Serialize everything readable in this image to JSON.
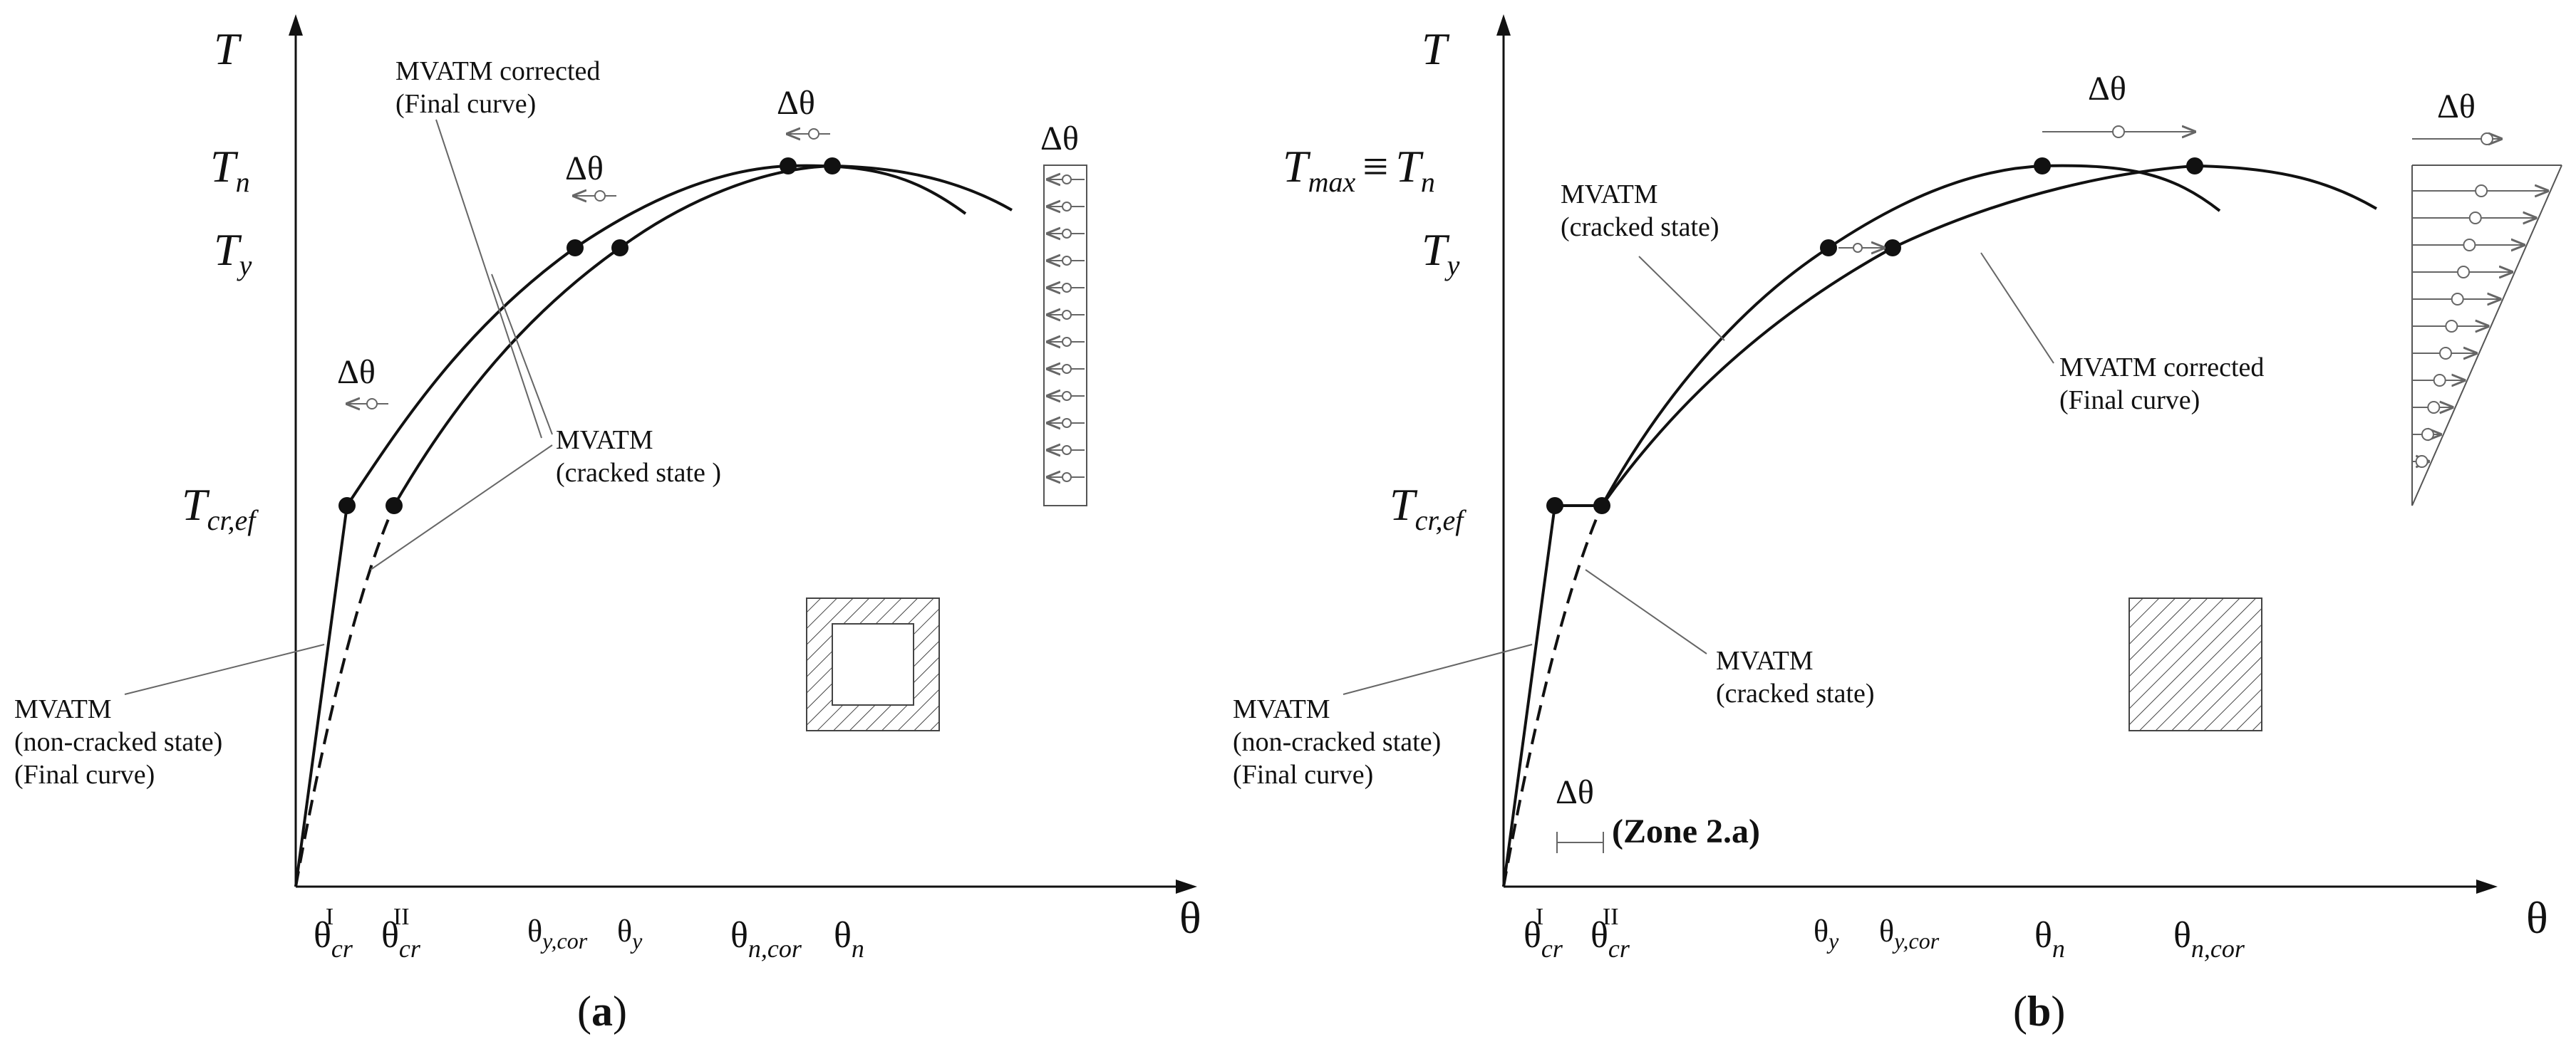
{
  "panel_a": {
    "caption_open": "(",
    "caption_letter": "a",
    "caption_close": ")",
    "y_axis_label": "T",
    "x_axis_label": "θ",
    "y_ticks": {
      "Tn": {
        "base": "T",
        "sub": "n"
      },
      "Ty": {
        "base": "T",
        "sub": "y"
      },
      "Tcr": {
        "base": "T",
        "sub": "cr,ef"
      }
    },
    "x_ticks": [
      {
        "base": "θ",
        "sub": "cr",
        "sup": "I"
      },
      {
        "base": "θ",
        "sub": "cr",
        "sup": "II"
      },
      {
        "base": "θ",
        "sub": "y,cor"
      },
      {
        "base": "θ",
        "sub": "y"
      },
      {
        "base": "θ",
        "sub": "n,cor"
      },
      {
        "base": "θ",
        "sub": "n"
      }
    ],
    "delta_labels": [
      "Δθ",
      "Δθ",
      "Δθ",
      "Δθ"
    ],
    "annotations": {
      "corrected": [
        "MVATM corrected",
        "(Final curve)"
      ],
      "cracked": [
        "MVATM",
        "(cracked state )"
      ],
      "noncracked": [
        "MVATM",
        "(non-cracked state)",
        "(Final curve)"
      ]
    }
  },
  "panel_b": {
    "caption_open": "(",
    "caption_letter": "b",
    "caption_close": ")",
    "y_axis_label": "T",
    "x_axis_label": "θ",
    "y_ticks": {
      "Tmax": {
        "base": "T",
        "sub": "max",
        "rel": "≡",
        "base2": "T",
        "sub2": "n"
      },
      "Ty": {
        "base": "T",
        "sub": "y"
      },
      "Tcr": {
        "base": "T",
        "sub": "cr,ef"
      }
    },
    "x_ticks": [
      {
        "base": "θ",
        "sub": "cr",
        "sup": "I"
      },
      {
        "base": "θ",
        "sub": "cr",
        "sup": "II"
      },
      {
        "base": "θ",
        "sub": "y"
      },
      {
        "base": "θ",
        "sub": "y,cor"
      },
      {
        "base": "θ",
        "sub": "n"
      },
      {
        "base": "θ",
        "sub": "n,cor"
      }
    ],
    "delta_labels": [
      "Δθ",
      "Δθ",
      "Δθ"
    ],
    "zone_label": "(Zone 2.a)",
    "annotations": {
      "cracked_top": [
        "MVATM",
        "(cracked state)"
      ],
      "corrected": [
        "MVATM corrected",
        "(Final curve)"
      ],
      "cracked_low": [
        "MVATM",
        "(cracked state)"
      ],
      "noncracked": [
        "MVATM",
        "(non-cracked state)",
        "(Final curve)"
      ]
    }
  },
  "colors": {
    "ink": "#111111",
    "thin": "#666666",
    "background": "#ffffff"
  }
}
